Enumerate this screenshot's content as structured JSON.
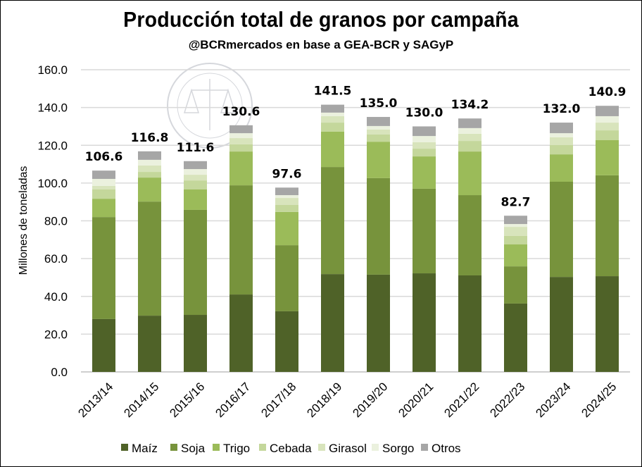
{
  "chart_data": {
    "type": "bar",
    "stacked": true,
    "title": "Producción total de granos por campaña",
    "subtitle": "@BCRmercados en base a GEA-BCR y SAGyP",
    "ylabel": "Millones de toneladas",
    "xlabel": "",
    "ylim": [
      0,
      160
    ],
    "yticks": [
      "0.0",
      "20.0",
      "40.0",
      "60.0",
      "80.0",
      "100.0",
      "120.0",
      "140.0",
      "160.0"
    ],
    "grid": true,
    "legend_position": "bottom",
    "categories": [
      "2013/14",
      "2014/15",
      "2015/16",
      "2016/17",
      "2017/18",
      "2018/19",
      "2019/20",
      "2020/21",
      "2021/22",
      "2022/23",
      "2023/24",
      "2024/25"
    ],
    "totals": [
      "106.6",
      "116.8",
      "111.6",
      "130.6",
      "97.6",
      "141.5",
      "135.0",
      "130.0",
      "134.2",
      "82.7",
      "132.0",
      "140.9"
    ],
    "series": [
      {
        "name": "Maíz",
        "color": "#4f6228",
        "values": [
          28.0,
          29.8,
          30.2,
          41.0,
          32.1,
          51.8,
          51.5,
          52.2,
          51.1,
          36.2,
          50.3,
          50.7
        ]
      },
      {
        "name": "Soja",
        "color": "#77933c",
        "values": [
          54.0,
          60.4,
          55.6,
          57.8,
          35.0,
          56.7,
          51.1,
          44.8,
          42.5,
          19.7,
          50.4,
          53.4
        ]
      },
      {
        "name": "Trigo",
        "color": "#9bbb59",
        "values": [
          9.7,
          12.7,
          10.8,
          17.9,
          17.6,
          18.7,
          19.3,
          17.1,
          23.1,
          11.6,
          14.5,
          18.6
        ]
      },
      {
        "name": "Cebada",
        "color": "#c4d79b",
        "values": [
          4.9,
          3.0,
          4.8,
          3.8,
          3.7,
          4.8,
          3.8,
          4.1,
          5.6,
          4.5,
          4.9,
          5.2
        ]
      },
      {
        "name": "Girasol",
        "color": "#d8e4bc",
        "values": [
          1.9,
          3.4,
          3.0,
          3.3,
          3.7,
          3.4,
          2.6,
          3.4,
          3.8,
          4.8,
          4.1,
          4.1
        ]
      },
      {
        "name": "Sorgo",
        "color": "#ebf1de",
        "values": [
          3.7,
          3.0,
          3.0,
          2.6,
          1.5,
          1.9,
          1.9,
          3.3,
          3.0,
          1.5,
          2.2,
          3.4
        ]
      },
      {
        "name": "Otros",
        "color": "#a6a6a6",
        "values": [
          4.4,
          4.5,
          4.2,
          4.2,
          4.0,
          4.2,
          4.8,
          5.1,
          5.1,
          4.4,
          5.6,
          5.5
        ]
      }
    ]
  },
  "watermark": {
    "text": "BOLSA DE COMERCIO DE ROSARIO"
  }
}
